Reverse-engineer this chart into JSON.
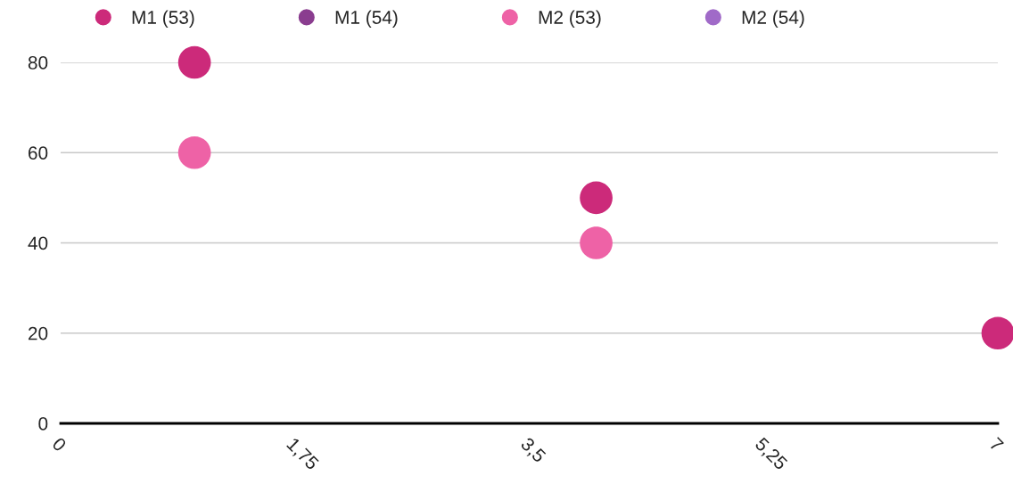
{
  "chart_data": {
    "type": "scatter",
    "x": [
      1,
      4,
      7
    ],
    "series": [
      {
        "name": "M1 (53)",
        "color": "#cc2a7a",
        "values": [
          80,
          50,
          20
        ]
      },
      {
        "name": "M1 (54)",
        "color": "#8a3d8f",
        "values": [
          null,
          null,
          null
        ]
      },
      {
        "name": "M2 (53)",
        "color": "#ee62a6",
        "values": [
          60,
          40,
          null
        ]
      },
      {
        "name": "M2 (54)",
        "color": "#a06ac8",
        "values": [
          null,
          null,
          null
        ]
      }
    ],
    "xlim": [
      0,
      7
    ],
    "xticks": [
      0,
      {
        "value": 1.75,
        "label": "1,75"
      },
      {
        "value": 3.5,
        "label": "3,5"
      },
      {
        "value": 5.25,
        "label": "5,25"
      },
      7
    ],
    "ylim": [
      0,
      80
    ],
    "yticks": [
      0,
      20,
      40,
      60,
      80
    ],
    "grid": "y",
    "legend": "top",
    "marker": "circle"
  }
}
